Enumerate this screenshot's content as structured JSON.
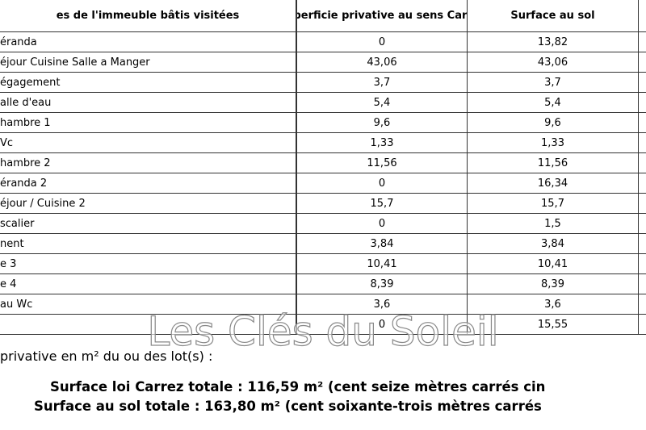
{
  "table": {
    "header": [
      "es de l'immeuble bâtis visitées",
      "Superficie privative au sens Carrez",
      "Surface au sol"
    ],
    "rows": [
      [
        "éranda",
        "0",
        "13,82"
      ],
      [
        "éjour Cuisine Salle a Manger",
        "43,06",
        "43,06"
      ],
      [
        "égagement",
        "3,7",
        "3,7"
      ],
      [
        "alle d'eau",
        "5,4",
        "5,4"
      ],
      [
        "hambre 1",
        "9,6",
        "9,6"
      ],
      [
        "Vc",
        "1,33",
        "1,33"
      ],
      [
        "hambre 2",
        "11,56",
        "11,56"
      ],
      [
        "éranda 2",
        "0",
        "16,34"
      ],
      [
        "éjour / Cuisine 2",
        "15,7",
        "15,7"
      ],
      [
        "scalier",
        "0",
        "1,5"
      ],
      [
        "nent",
        "3,84",
        "3,84"
      ],
      [
        "e 3",
        "10,41",
        "10,41"
      ],
      [
        "e 4",
        "8,39",
        "8,39"
      ],
      [
        "au Wc",
        "3,6",
        "3,6"
      ],
      [
        null,
        "0",
        "15,55"
      ]
    ]
  },
  "summary": {
    "intro": "privative en m² du ou des lot(s) :",
    "carrez": "Surface loi Carrez totale : 116,59 m² (cent seize mètres carrés cin",
    "sol": "Surface au sol totale : 163,80 m² (cent soixante-trois mètres carrés"
  },
  "watermark": "Les Clés du Soleil"
}
